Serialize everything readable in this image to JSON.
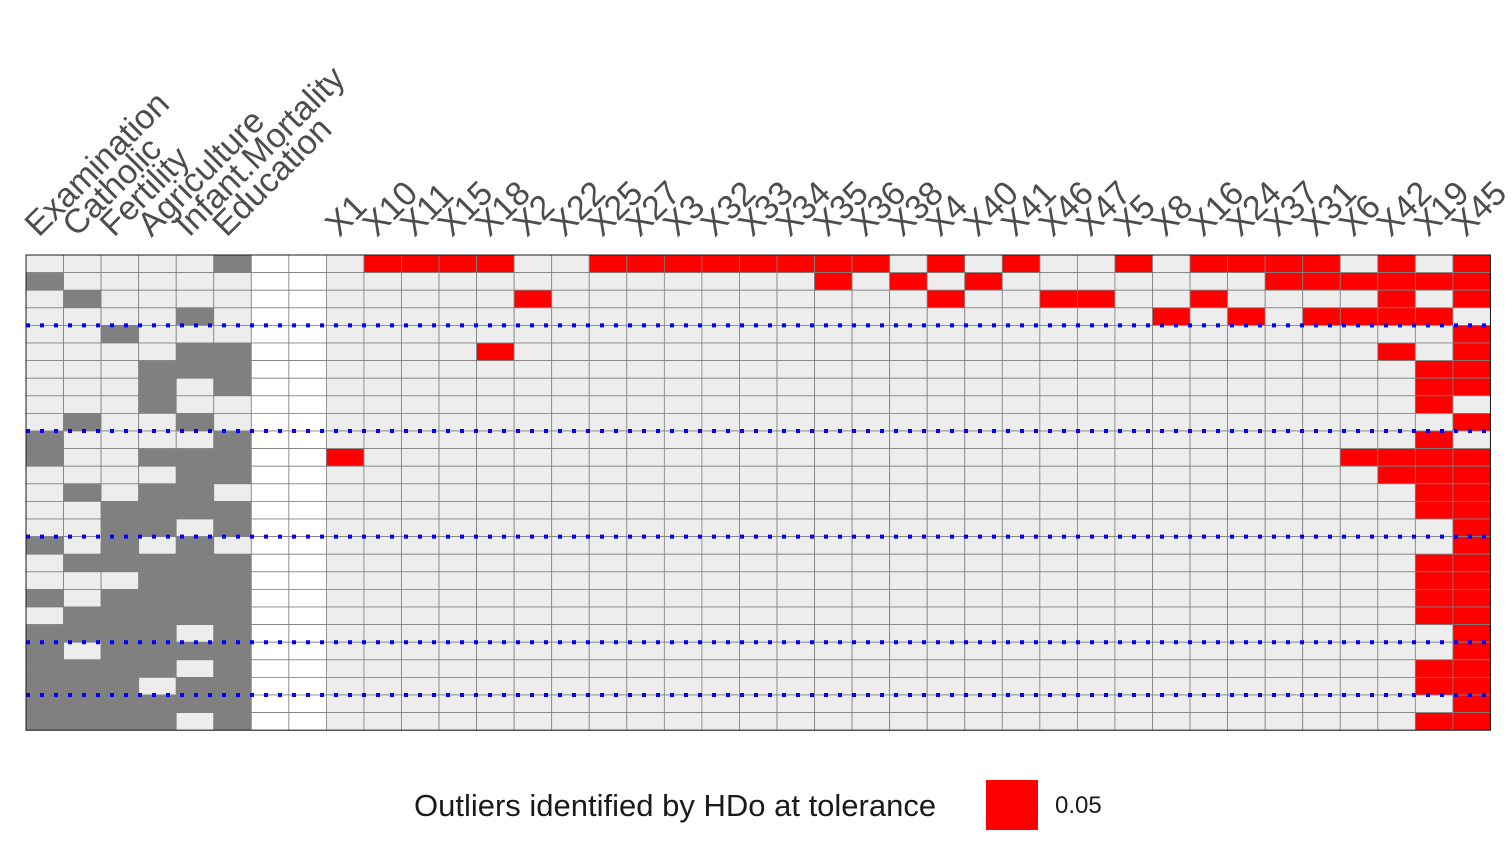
{
  "chart_data": {
    "type": "heatmap",
    "title": "",
    "xlabel": "",
    "ylabel": "",
    "variable_columns": [
      "Examination",
      "Catholic",
      "Fertility",
      "Agriculture",
      "Infant.Mortality",
      "Education"
    ],
    "blank_columns": 2,
    "pair_columns": [
      "X1",
      "X10",
      "X11",
      "X15",
      "X18",
      "X2",
      "X22",
      "X25",
      "X27",
      "X3",
      "X32",
      "X33",
      "X34",
      "X35",
      "X36",
      "X38",
      "X4",
      "X40",
      "X41",
      "X46",
      "X47",
      "X5",
      "X8",
      "X16",
      "X24",
      "X37",
      "X31",
      "X6",
      "X42",
      "X19",
      "X45"
    ],
    "variable_matrix": [
      "000001",
      "100000",
      "010000",
      "000010",
      "001000",
      "000011",
      "000111",
      "000101",
      "000100",
      "010010",
      "100001",
      "100111",
      "000011",
      "010110",
      "001111",
      "001101",
      "101010",
      "011111",
      "000111",
      "101111",
      "011111",
      "111101",
      "101111",
      "111101",
      "111011",
      "111111",
      "111101"
    ],
    "outlier_matrix": [
      "0111100111111110101001011110101",
      "0000000000000101010000000111111",
      "0000010000000000100110010000101",
      "0000000000000000000000101011110",
      "0000000000000000000000000000001",
      "0000100000000000000000000000101",
      "0000000000000000000000000000011",
      "0000000000000000000000000000011",
      "0000000000000000000000000000010",
      "0000000000000000000000000000001",
      "0000000000000000000000000000010",
      "1000000000000000000000000001111",
      "0000000000000000000000000000111",
      "0000000000000000000000000000011",
      "0000000000000000000000000000011",
      "0000000000000000000000000000001",
      "0000000000000000000000000000001",
      "0000000000000000000000000000011",
      "0000000000000000000000000000011",
      "0000000000000000000000000000011",
      "0000000000000000000000000000011",
      "0000000000000000000000000000001",
      "0000000000000000000000000000001",
      "0000000000000000000000000000011",
      "0000000000000000000000000000011",
      "0000000000000000000000000000001",
      "0000000000000000000000000000011"
    ],
    "separator_after_rows": [
      4,
      10,
      16,
      22,
      25
    ],
    "colors": {
      "empty": "#ededed",
      "variable": "#808080",
      "outlier": "#ff0000",
      "blank": "#ffffff",
      "grid": "#7f7f7f",
      "separator": "#0000ff"
    },
    "legend": {
      "title": "Outliers identified by HDo at tolerance",
      "label": "0.05",
      "color": "#ff0000"
    }
  }
}
